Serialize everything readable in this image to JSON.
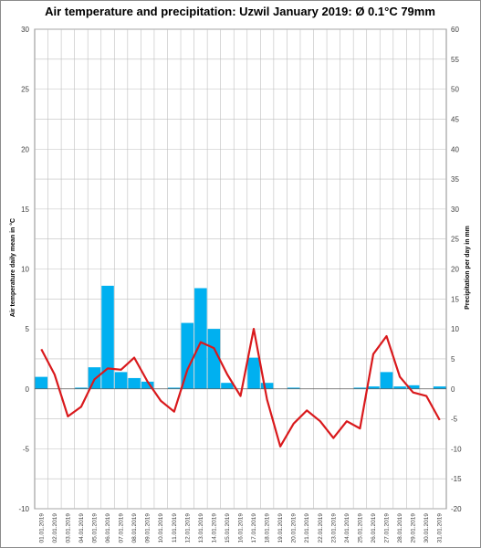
{
  "chart_data": {
    "type": "bar+line",
    "title": "Air temperature and precipitation: Uzwil January 2019: Ø 0.1°C 79mm",
    "y_left_label": "Air temperature daily mean in °C",
    "y_right_label": "Precipitation per day in mm",
    "y_left_range": [
      -10,
      30
    ],
    "y_right_range": [
      -20,
      60
    ],
    "y_left_ticks": [
      -10,
      -5,
      0,
      5,
      10,
      15,
      20,
      25,
      30
    ],
    "y_right_ticks": [
      -20,
      -15,
      -10,
      -5,
      0,
      5,
      10,
      15,
      20,
      25,
      30,
      35,
      40,
      45,
      50,
      55,
      60
    ],
    "grid": true,
    "categories": [
      "01.01.2019",
      "02.01.2019",
      "03.01.2019",
      "04.01.2019",
      "05.01.2019",
      "06.01.2019",
      "07.01.2019",
      "08.01.2019",
      "09.01.2019",
      "10.01.2019",
      "11.01.2019",
      "12.01.2019",
      "13.01.2019",
      "14.01.2019",
      "15.01.2019",
      "16.01.2019",
      "17.01.2019",
      "18.01.2019",
      "19.01.2019",
      "20.01.2019",
      "21.01.2019",
      "22.01.2019",
      "23.01.2019",
      "24.01.2019",
      "25.01.2019",
      "26.01.2019",
      "27.01.2019",
      "28.01.2019",
      "29.01.2019",
      "30.01.2019",
      "31.01.2019"
    ],
    "series": [
      {
        "kind": "bar",
        "axis": "right",
        "color": "#00b0f0",
        "values": [
          2.0,
          0,
          0,
          0.2,
          3.6,
          17.2,
          2.8,
          1.8,
          1.2,
          0,
          0.2,
          11.0,
          16.8,
          10.0,
          1.0,
          0,
          5.2,
          1.0,
          0,
          0.2,
          0,
          0,
          0,
          0,
          0.2,
          0.4,
          2.8,
          0.4,
          0.6,
          0,
          0.4
        ]
      },
      {
        "kind": "line",
        "axis": "left",
        "color": "#d9191c",
        "values": [
          3.3,
          1.2,
          -2.3,
          -1.5,
          0.8,
          1.7,
          1.6,
          2.6,
          0.6,
          -1.0,
          -1.9,
          1.6,
          3.9,
          3.4,
          1.2,
          -0.6,
          5.0,
          -0.9,
          -4.8,
          -2.9,
          -1.8,
          -2.7,
          -4.1,
          -2.7,
          -3.3,
          2.9,
          4.4,
          1.0,
          -0.3,
          -0.6,
          -2.6
        ]
      }
    ]
  }
}
